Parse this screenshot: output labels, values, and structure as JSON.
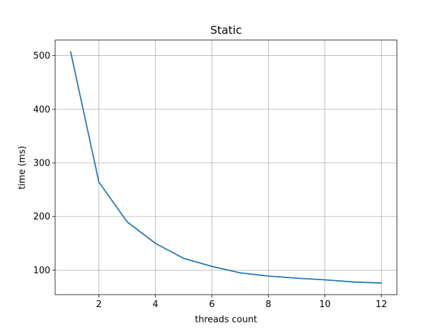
{
  "chart_data": {
    "type": "line",
    "title": "Static",
    "xlabel": "threads count",
    "ylabel": "time (ms)",
    "xlim": [
      0.45,
      12.55
    ],
    "ylim": [
      54.3,
      529.0
    ],
    "xticks": [
      2,
      4,
      6,
      8,
      10,
      12
    ],
    "yticks": [
      100,
      200,
      300,
      400,
      500
    ],
    "grid": true,
    "colors": {
      "line": "#1f77b4",
      "grid": "#b0b0b0"
    },
    "series": [
      {
        "x": [
          1,
          2,
          3,
          4,
          5,
          6,
          7,
          8,
          9,
          10,
          11,
          12
        ],
        "values": [
          507,
          264,
          190,
          150,
          122,
          107,
          95,
          89,
          85,
          82,
          78,
          76
        ]
      }
    ]
  }
}
